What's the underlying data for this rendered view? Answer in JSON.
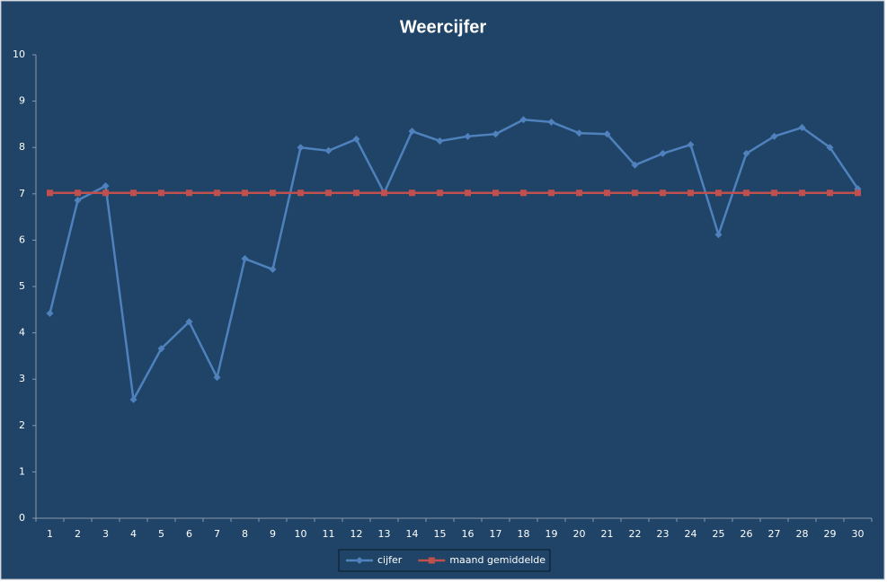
{
  "chart_data": {
    "type": "line",
    "title": "Weercijfer",
    "categories": [
      "1",
      "2",
      "3",
      "4",
      "5",
      "6",
      "7",
      "8",
      "9",
      "10",
      "11",
      "12",
      "13",
      "14",
      "15",
      "16",
      "17",
      "18",
      "19",
      "20",
      "21",
      "22",
      "23",
      "24",
      "25",
      "26",
      "27",
      "28",
      "29",
      "30"
    ],
    "series": [
      {
        "name": "cijfer",
        "color": "#4f81bd",
        "marker": "diamond",
        "values": [
          4.42,
          6.86,
          7.17,
          2.56,
          3.66,
          4.24,
          3.04,
          5.6,
          5.37,
          8.0,
          7.93,
          8.18,
          7.02,
          8.35,
          8.14,
          8.24,
          8.29,
          8.6,
          8.55,
          8.31,
          8.29,
          7.62,
          7.87,
          8.06,
          6.12,
          7.87,
          8.24,
          8.43,
          8.0,
          7.11
        ]
      },
      {
        "name": "maand gemiddelde",
        "color": "#c0504d",
        "marker": "square",
        "values": [
          7.02,
          7.02,
          7.02,
          7.02,
          7.02,
          7.02,
          7.02,
          7.02,
          7.02,
          7.02,
          7.02,
          7.02,
          7.02,
          7.02,
          7.02,
          7.02,
          7.02,
          7.02,
          7.02,
          7.02,
          7.02,
          7.02,
          7.02,
          7.02,
          7.02,
          7.02,
          7.02,
          7.02,
          7.02,
          7.02
        ]
      }
    ],
    "ylim": [
      0,
      10
    ],
    "yticks": [
      0,
      1,
      2,
      3,
      4,
      5,
      6,
      7,
      8,
      9,
      10
    ],
    "grid": false,
    "legend": "bottom"
  }
}
